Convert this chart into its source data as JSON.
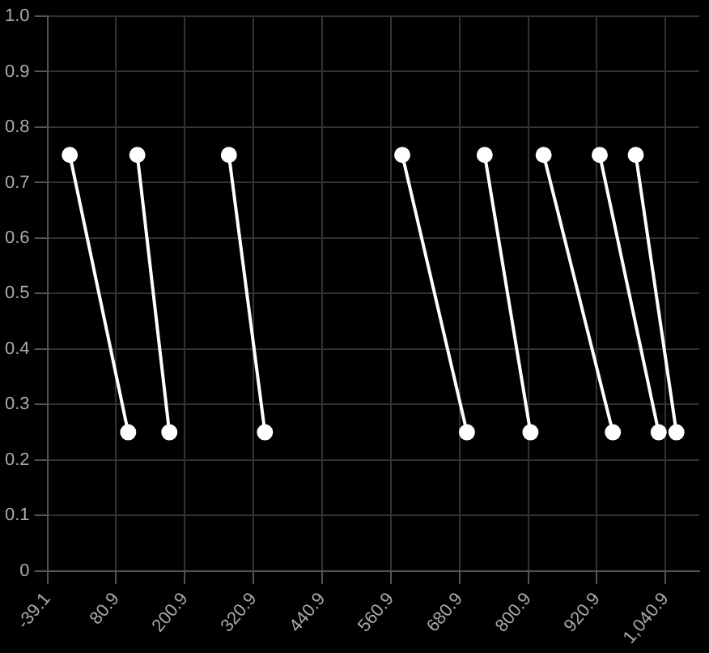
{
  "chart_data": {
    "type": "line",
    "xlim": [
      -39.1,
      1100
    ],
    "ylim": [
      0,
      1
    ],
    "xticks": [
      {
        "value": -39.1,
        "label": "-39.1"
      },
      {
        "value": 80.9,
        "label": "80.9"
      },
      {
        "value": 200.9,
        "label": "200.9"
      },
      {
        "value": 320.9,
        "label": "320.9"
      },
      {
        "value": 440.9,
        "label": "440.9"
      },
      {
        "value": 560.9,
        "label": "560.9"
      },
      {
        "value": 680.9,
        "label": "680.9"
      },
      {
        "value": 800.9,
        "label": "800.9"
      },
      {
        "value": 920.9,
        "label": "920.9"
      },
      {
        "value": 1040.9,
        "label": "1,040.9"
      }
    ],
    "yticks": [
      0,
      {
        "value": 0.1,
        "label": "0.1"
      },
      {
        "value": 0.2,
        "label": "0.2"
      },
      {
        "value": 0.3,
        "label": "0.3"
      },
      {
        "value": 0.4,
        "label": "0.4"
      },
      {
        "value": 0.5,
        "label": "0.5"
      },
      {
        "value": 0.6,
        "label": "0.6"
      },
      {
        "value": 0.7,
        "label": "0.7"
      },
      {
        "value": 0.8,
        "label": "0.8"
      },
      {
        "value": 0.9,
        "label": "0.9"
      },
      {
        "value": 1,
        "label": "1.0"
      }
    ],
    "grid": true,
    "legend": false,
    "marker": "circle",
    "line_style": "solid",
    "series": [
      {
        "color": "#ffffff",
        "x": [
          0,
          102
        ],
        "values": [
          0.75,
          0.25
        ]
      },
      {
        "color": "#ffffff",
        "x": [
          118,
          174
        ],
        "values": [
          0.75,
          0.25
        ]
      },
      {
        "color": "#ffffff",
        "x": [
          278,
          341
        ],
        "values": [
          0.75,
          0.25
        ]
      },
      {
        "color": "#ffffff",
        "x": [
          581,
          694
        ],
        "values": [
          0.75,
          0.25
        ]
      },
      {
        "color": "#ffffff",
        "x": [
          725,
          805
        ],
        "values": [
          0.75,
          0.25
        ]
      },
      {
        "color": "#ffffff",
        "x": [
          828,
          949
        ],
        "values": [
          0.75,
          0.25
        ]
      },
      {
        "color": "#ffffff",
        "x": [
          926,
          1029
        ],
        "values": [
          0.75,
          0.25
        ]
      },
      {
        "color": "#ffffff",
        "x": [
          989,
          1060
        ],
        "values": [
          0.75,
          0.25
        ]
      }
    ]
  }
}
